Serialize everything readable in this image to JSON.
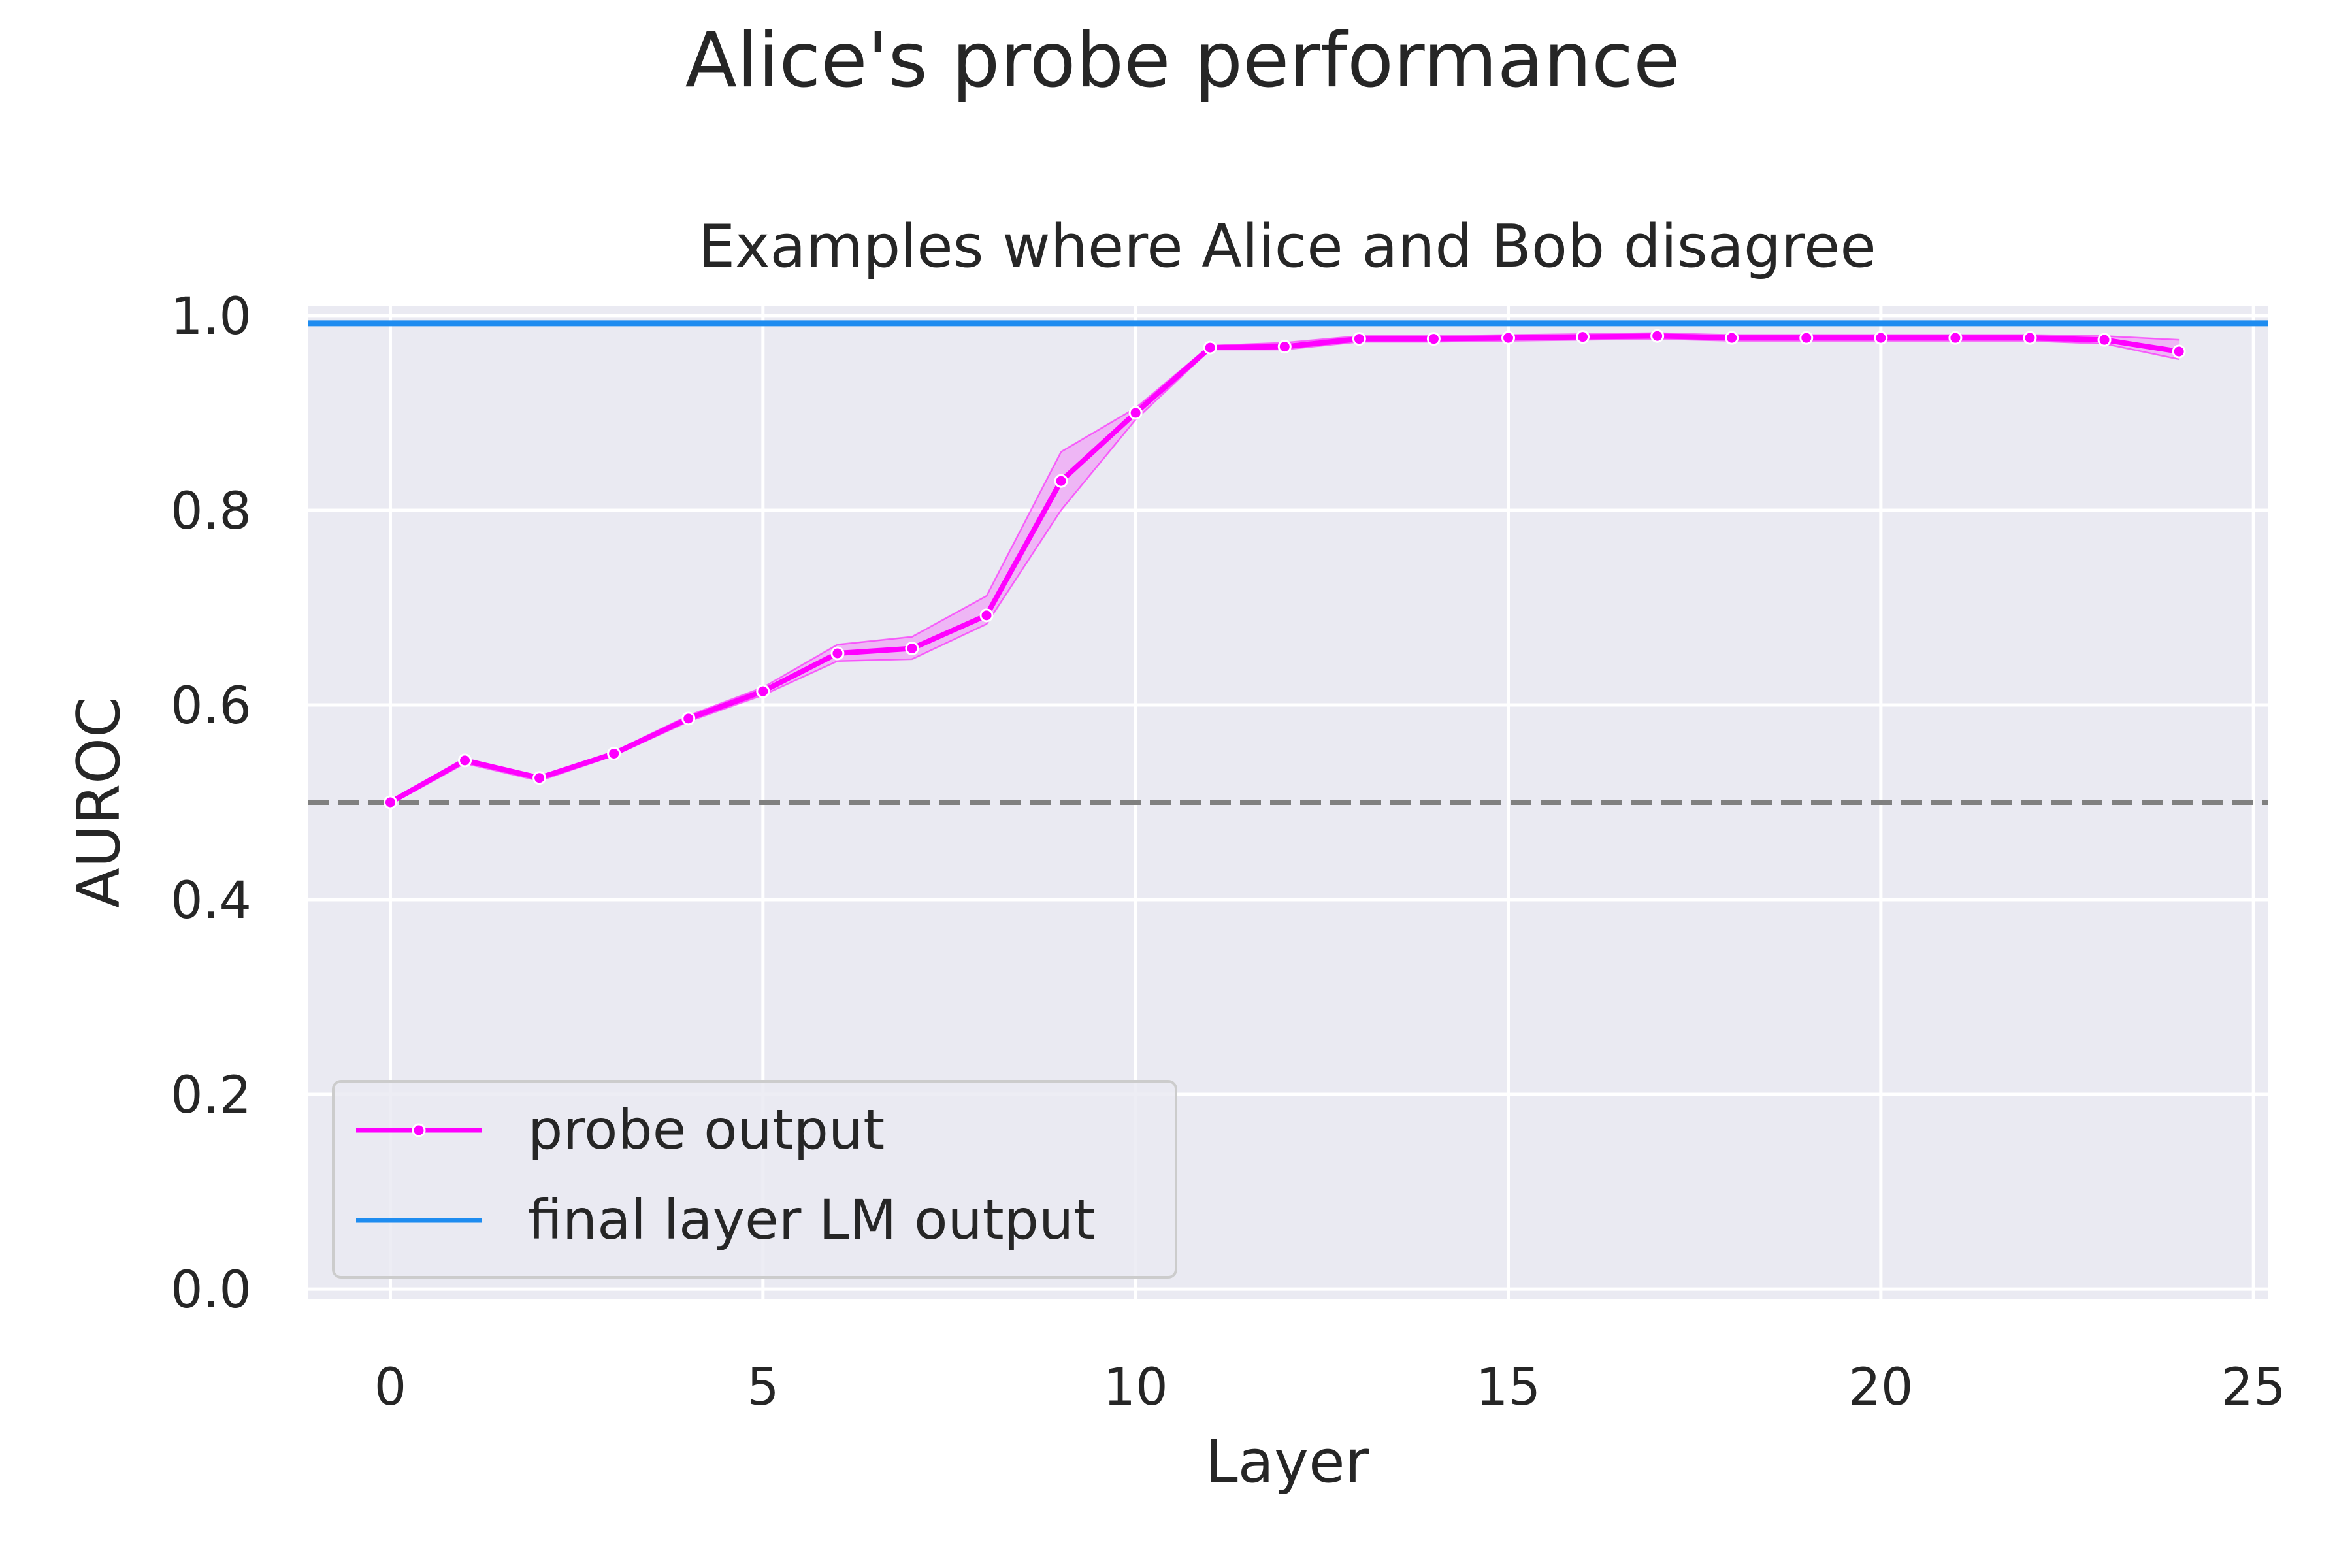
{
  "chart_data": {
    "type": "line",
    "title": "Alice's probe performance",
    "subtitle": "Examples where Alice and Bob disagree",
    "xlabel": "Layer",
    "ylabel": "AUROC",
    "xlim": [
      -1.1,
      25.2
    ],
    "ylim": [
      -0.01,
      1.01
    ],
    "xticks": [
      0,
      5,
      10,
      15,
      20,
      25
    ],
    "yticks": [
      0.0,
      0.2,
      0.4,
      0.6,
      0.8,
      1.0
    ],
    "xtick_labels": [
      "0",
      "5",
      "10",
      "15",
      "20",
      "25"
    ],
    "ytick_labels": [
      "0.0",
      "0.2",
      "0.4",
      "0.6",
      "0.8",
      "1.0"
    ],
    "grid": true,
    "legend_position": "lower-left",
    "legend": [
      "probe output",
      "final layer LM output"
    ],
    "series": [
      {
        "name": "probe output",
        "color": "#ff00ff",
        "marker": "dot",
        "x": [
          0,
          1,
          2,
          3,
          4,
          5,
          6,
          7,
          8,
          9,
          10,
          11,
          12,
          13,
          14,
          15,
          16,
          17,
          18,
          19,
          20,
          21,
          22,
          23,
          24
        ],
        "values": [
          0.5,
          0.543,
          0.525,
          0.55,
          0.586,
          0.614,
          0.653,
          0.658,
          0.692,
          0.83,
          0.9,
          0.967,
          0.968,
          0.976,
          0.976,
          0.977,
          0.978,
          0.979,
          0.977,
          0.977,
          0.977,
          0.977,
          0.977,
          0.975,
          0.963
        ],
        "band_upper": [
          0.502,
          0.545,
          0.527,
          0.552,
          0.589,
          0.618,
          0.662,
          0.67,
          0.712,
          0.86,
          0.905,
          0.969,
          0.972,
          0.979,
          0.979,
          0.98,
          0.981,
          0.982,
          0.98,
          0.98,
          0.98,
          0.98,
          0.98,
          0.979,
          0.975
        ],
        "band_lower": [
          0.498,
          0.54,
          0.522,
          0.548,
          0.583,
          0.61,
          0.645,
          0.647,
          0.683,
          0.8,
          0.893,
          0.965,
          0.965,
          0.973,
          0.973,
          0.974,
          0.975,
          0.976,
          0.974,
          0.974,
          0.974,
          0.974,
          0.974,
          0.971,
          0.955
        ]
      },
      {
        "name": "final layer LM output",
        "color": "#1e8cf0",
        "type": "hline",
        "value": 0.992
      }
    ],
    "reference_lines": [
      {
        "value": 0.5,
        "style": "dashed",
        "color": "#808080"
      }
    ]
  }
}
